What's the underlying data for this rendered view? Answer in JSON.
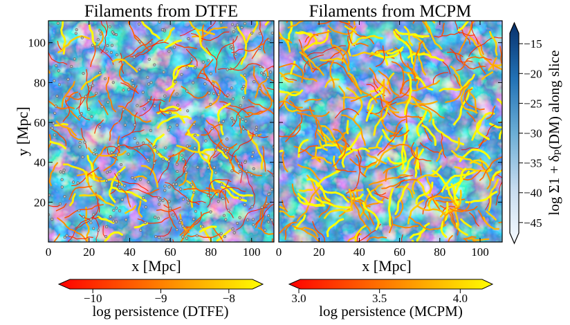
{
  "chart_data": [
    {
      "type": "heatmap",
      "title": "Filaments from DTFE",
      "xlabel": "x [Mpc]",
      "ylabel": "y [Mpc]",
      "xlim": [
        0,
        111
      ],
      "ylim": [
        0,
        111
      ],
      "xticks": [
        "0",
        "20",
        "40",
        "60",
        "80",
        "100"
      ],
      "yticks": [
        "20",
        "40",
        "60",
        "80",
        "100"
      ],
      "overlay": "filaments colored by log persistence (DTFE) with critical points as grey dots",
      "colorbar": {
        "label": "log persistence (DTFE)",
        "ticks": [
          "−10",
          "−9",
          "−8"
        ],
        "tick_values": [
          -10,
          -9,
          -8
        ],
        "range": [
          -10.5,
          -7.5
        ],
        "colormap": "autumn",
        "colors": [
          "#ff0000",
          "#ffff00"
        ],
        "extend": "both"
      }
    },
    {
      "type": "heatmap",
      "title": "Filaments from MCPM",
      "xlabel": "x [Mpc]",
      "xlim": [
        0,
        111
      ],
      "ylim": [
        0,
        111
      ],
      "xticks": [
        "0",
        "20",
        "40",
        "60",
        "80",
        "100"
      ],
      "overlay": "filaments colored by log persistence (MCPM)",
      "colorbar": {
        "label": "log persistence (MCPM)",
        "ticks": [
          "3.0",
          "3.5",
          "4.0"
        ],
        "tick_values": [
          3.0,
          3.5,
          4.0
        ],
        "range": [
          2.94,
          4.2
        ],
        "colormap": "autumn",
        "colors": [
          "#ff0000",
          "#ffff00"
        ],
        "extend": "both"
      }
    }
  ],
  "density_colorbar": {
    "label": "log Σ1 + δₚ(DM) along slice",
    "ticks": [
      "−15",
      "−20",
      "−25",
      "−30",
      "−35",
      "−40",
      "−45"
    ],
    "tick_values": [
      -15,
      -20,
      -25,
      -30,
      -35,
      -40,
      -45
    ],
    "range": [
      -48.5,
      -11.5
    ],
    "colormap": "Blues",
    "colors": [
      "#f7fbff",
      "#08306b"
    ],
    "extend": "both"
  }
}
